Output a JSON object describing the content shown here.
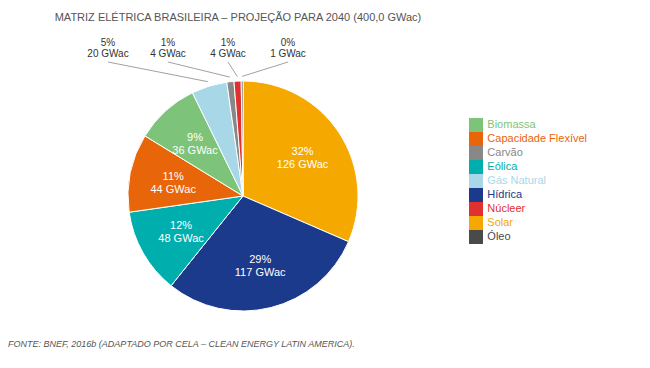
{
  "chart_data": {
    "type": "pie",
    "title": "MATRIZ ELÉTRICA BRASILEIRA – PROJEÇÃO PARA 2040 (400,0 GWac)",
    "categories": [
      "Solar",
      "Hídrica",
      "Eólica",
      "Capacidade Flexível",
      "Biomassa",
      "Gás Natural",
      "Carvão",
      "Núcleer",
      "Óleo"
    ],
    "values": [
      126,
      117,
      48,
      44,
      36,
      20,
      4,
      4,
      1
    ],
    "value_labels": [
      "126 GWac",
      "117 GWac",
      "48 GWac",
      "44 GWac",
      "36 GWac",
      "20 GWac",
      "4 GWac",
      "4 GWac",
      "1 GWac"
    ],
    "percent_labels": [
      "32%",
      "29%",
      "12%",
      "11%",
      "9%",
      "5%",
      "1%",
      "1%",
      "0%"
    ],
    "colors": [
      "#F5A800",
      "#1B3A8C",
      "#00AEAE",
      "#E8650A",
      "#7DC47A",
      "#A8D8E8",
      "#888888",
      "#E03030",
      "#4A4A4A"
    ],
    "legend": "right",
    "annotations": [
      "FONTE: BNEF, 2016b (ADAPTADO POR CELA – CLEAN ENERGY LATIN AMERICA)."
    ]
  }
}
